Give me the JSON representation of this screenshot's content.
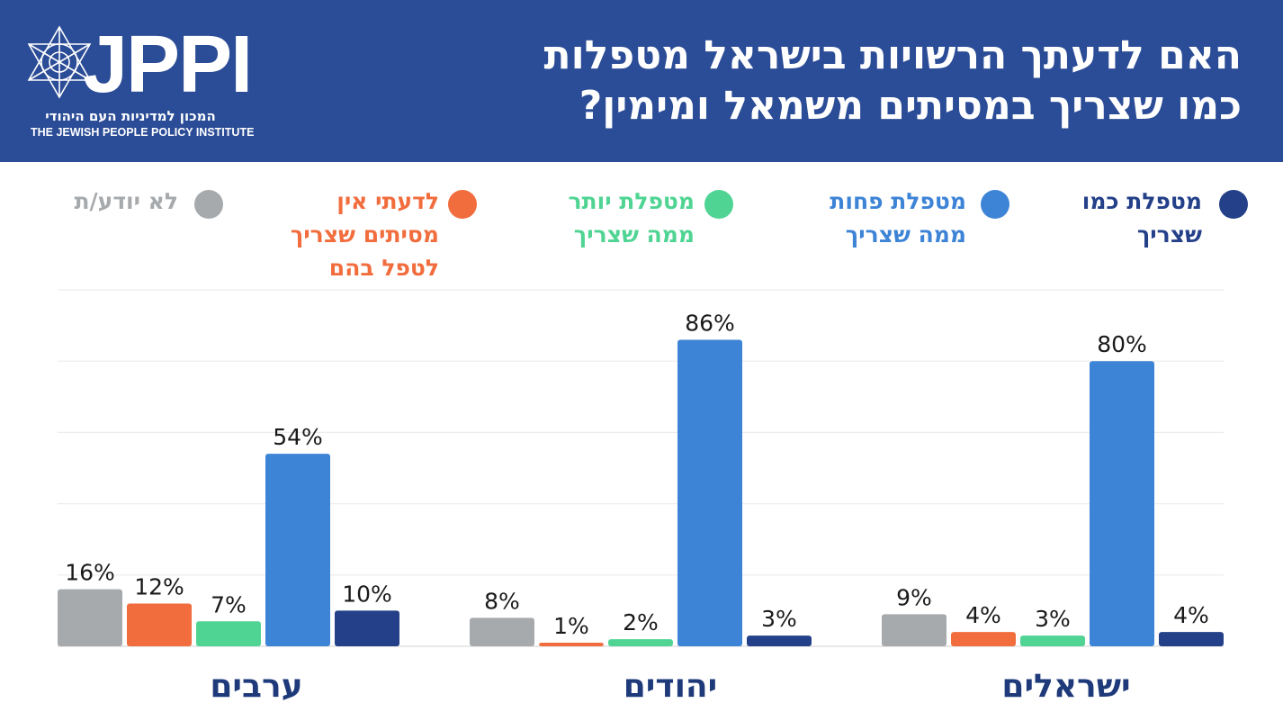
{
  "header": {
    "logo_text": "JPPI",
    "logo_subtitle_he": "המכון למדיניות העם היהודי",
    "logo_subtitle_en": "THE JEWISH PEOPLE POLICY INSTITUTE",
    "title_line1": "האם לדעתך הרשויות בישראל מטפלות",
    "title_line2": "כמו שצריך במסיתים משמאל ומימין?"
  },
  "chart_data": {
    "type": "bar",
    "ylim": [
      0,
      100
    ],
    "grid": true,
    "legend_position": "top",
    "series": [
      {
        "name": "מטפלת כמו\nשצריך",
        "color": "#234089",
        "values": [
          4,
          3,
          10
        ]
      },
      {
        "name": "מטפלת פחות\nממה שצריך",
        "color": "#3d84d6",
        "values": [
          80,
          86,
          54
        ]
      },
      {
        "name": "מטפלת יותר\nממה שצריך",
        "color": "#4fd493",
        "values": [
          3,
          2,
          7
        ]
      },
      {
        "name": "לדעתי אין\nמסיתים שצריך\nלטפל בהם",
        "color": "#f26d3d",
        "values": [
          4,
          1,
          12
        ]
      },
      {
        "name": "לא יודע/ת",
        "color": "#a7aaad",
        "values": [
          9,
          8,
          16
        ]
      }
    ],
    "categories": [
      "ישראלים",
      "יהודים",
      "ערבים"
    ],
    "value_suffix": "%"
  }
}
